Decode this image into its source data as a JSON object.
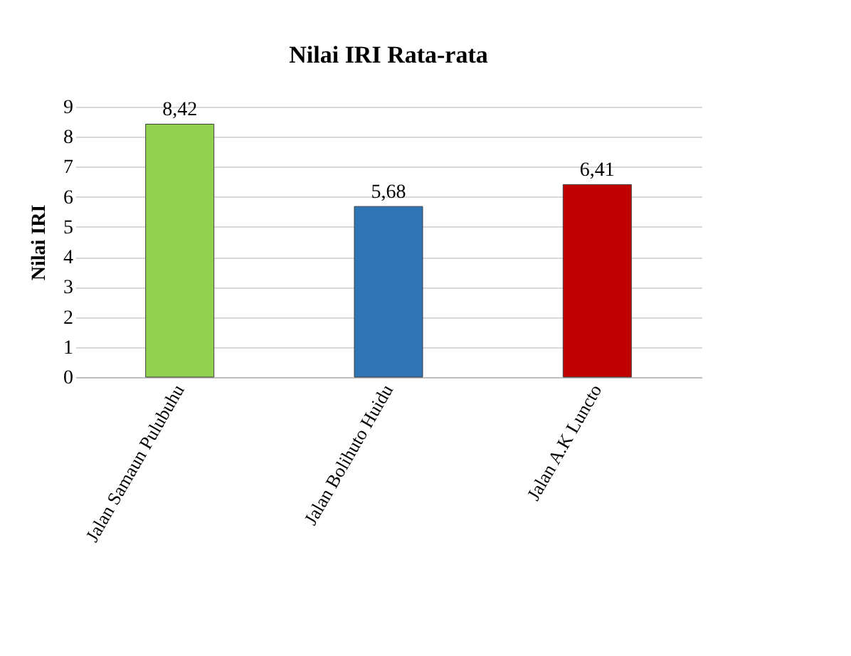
{
  "chart_data": {
    "type": "bar",
    "title": "Nilai IRI Rata-rata",
    "ylabel": "Nilai IRI",
    "categories": [
      "Jalan Samaun Pulubuhu",
      "Jalan Bolihuto Huidu",
      "Jalan A.K Luncto"
    ],
    "values": [
      8.42,
      5.68,
      6.41
    ],
    "colors": [
      "#92d050",
      "#2e75b6",
      "#c00000"
    ],
    "value_labels": [
      "8,42",
      "5,68",
      "6,41"
    ],
    "ylim": [
      0,
      9
    ],
    "yticks": [
      0,
      1,
      2,
      3,
      4,
      5,
      6,
      7,
      8,
      9
    ],
    "grid": "y"
  }
}
